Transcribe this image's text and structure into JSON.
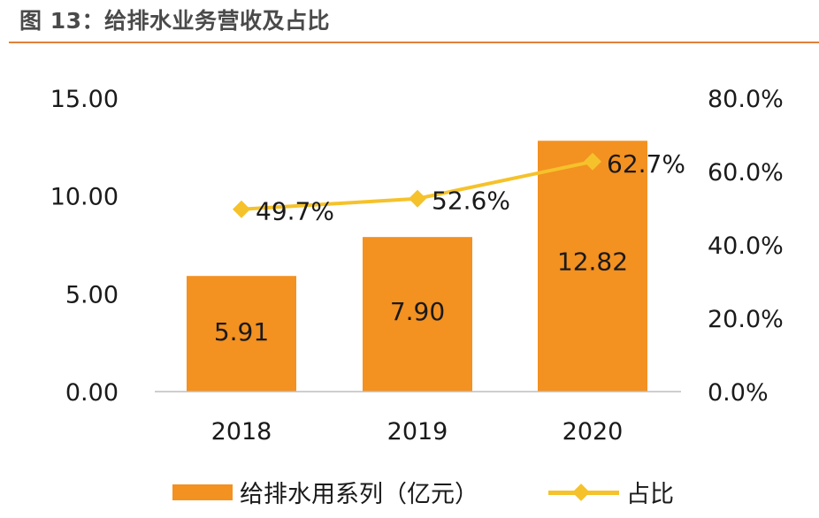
{
  "figure_title": "图 13：给排水业务营收及占比",
  "colors": {
    "bar": "#f39121",
    "line": "#f5c22b",
    "axis": "#bdbdbd",
    "rule": "#e0823a"
  },
  "chart_data": {
    "type": "bar+line",
    "categories": [
      "2018",
      "2019",
      "2020"
    ],
    "series": [
      {
        "name": "给排水用系列（亿元）",
        "type": "bar",
        "axis": "left",
        "values": [
          5.91,
          7.9,
          12.82
        ],
        "labels": [
          "5.91",
          "7.90",
          "12.82"
        ]
      },
      {
        "name": "占比",
        "type": "line",
        "axis": "right",
        "values": [
          49.7,
          52.6,
          62.7
        ],
        "labels": [
          "49.7%",
          "52.6%",
          "62.7%"
        ]
      }
    ],
    "y_left": {
      "min": 0,
      "max": 15,
      "ticks": [
        "0.00",
        "5.00",
        "10.00",
        "15.00"
      ]
    },
    "y_right": {
      "min": 0,
      "max": 80,
      "ticks": [
        "0.0%",
        "20.0%",
        "40.0%",
        "60.0%",
        "80.0%"
      ]
    },
    "legend_position": "bottom",
    "grid": false
  }
}
